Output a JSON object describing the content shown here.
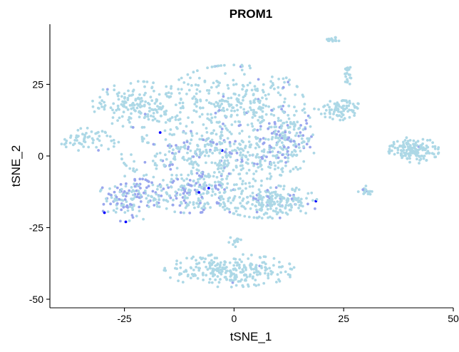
{
  "chart_data": {
    "type": "scatter",
    "title": "PROM1",
    "xlabel": "tSNE_1",
    "ylabel": "tSNE_2",
    "xlim": [
      -42,
      50
    ],
    "ylim": [
      -53,
      46
    ],
    "xticks": [
      -25,
      0,
      25,
      50
    ],
    "xtick_labels": [
      "-25",
      "0",
      "25",
      "50"
    ],
    "yticks": [
      -50,
      -25,
      0,
      25
    ],
    "ytick_labels": [
      "-50",
      "-25",
      "0",
      "25"
    ],
    "grid": false,
    "legend": "none",
    "colors": {
      "low": "#add8e6",
      "mid": "#9aa6ee",
      "high": "#0000ff"
    },
    "clusters": [
      {
        "name": "left-arm",
        "cx": -33,
        "cy": 6,
        "rx": 6,
        "ry": 4,
        "n": 60,
        "expr_frac": 0.05
      },
      {
        "name": "upper-left",
        "cx": -22,
        "cy": 18,
        "rx": 9,
        "ry": 7,
        "n": 180,
        "expr_frac": 0.05
      },
      {
        "name": "central-upper",
        "cx": 0,
        "cy": 18,
        "rx": 14,
        "ry": 12,
        "n": 320,
        "expr_frac": 0.06
      },
      {
        "name": "central-mid",
        "cx": -5,
        "cy": 0,
        "rx": 18,
        "ry": 9,
        "n": 380,
        "expr_frac": 0.18
      },
      {
        "name": "right-center",
        "cx": 12,
        "cy": 6,
        "rx": 6,
        "ry": 10,
        "n": 170,
        "expr_frac": 0.3
      },
      {
        "name": "lower-left",
        "cx": -24,
        "cy": -15,
        "rx": 6,
        "ry": 7,
        "n": 140,
        "expr_frac": 0.5
      },
      {
        "name": "lower-mid",
        "cx": -10,
        "cy": -13,
        "rx": 9,
        "ry": 6,
        "n": 200,
        "expr_frac": 0.25
      },
      {
        "name": "lower-right",
        "cx": 8,
        "cy": -16,
        "rx": 10,
        "ry": 5,
        "n": 240,
        "expr_frac": 0.12
      },
      {
        "name": "bottom",
        "cx": -1,
        "cy": -40,
        "rx": 13,
        "ry": 5,
        "n": 260,
        "expr_frac": 0.02
      },
      {
        "name": "far-right-upper",
        "cx": 24,
        "cy": 16,
        "rx": 5,
        "ry": 3,
        "n": 80,
        "expr_frac": 0.0
      },
      {
        "name": "far-right",
        "cx": 41,
        "cy": 2,
        "rx": 5,
        "ry": 4,
        "n": 150,
        "expr_frac": 0.02
      },
      {
        "name": "top-right-small",
        "cx": 22.5,
        "cy": 40.5,
        "rx": 1.5,
        "ry": 0.8,
        "n": 15,
        "expr_frac": 0.0
      },
      {
        "name": "upper-right-streak",
        "cx": 26,
        "cy": 28,
        "rx": 0.6,
        "ry": 4,
        "n": 20,
        "expr_frac": 0.0
      },
      {
        "name": "mid-right-small",
        "cx": 30,
        "cy": -12,
        "rx": 1.5,
        "ry": 1.5,
        "n": 20,
        "expr_frac": 0.1
      },
      {
        "name": "tiny-bottom",
        "cx": 0,
        "cy": -30,
        "rx": 1.5,
        "ry": 1.5,
        "n": 12,
        "expr_frac": 0.0
      }
    ]
  }
}
